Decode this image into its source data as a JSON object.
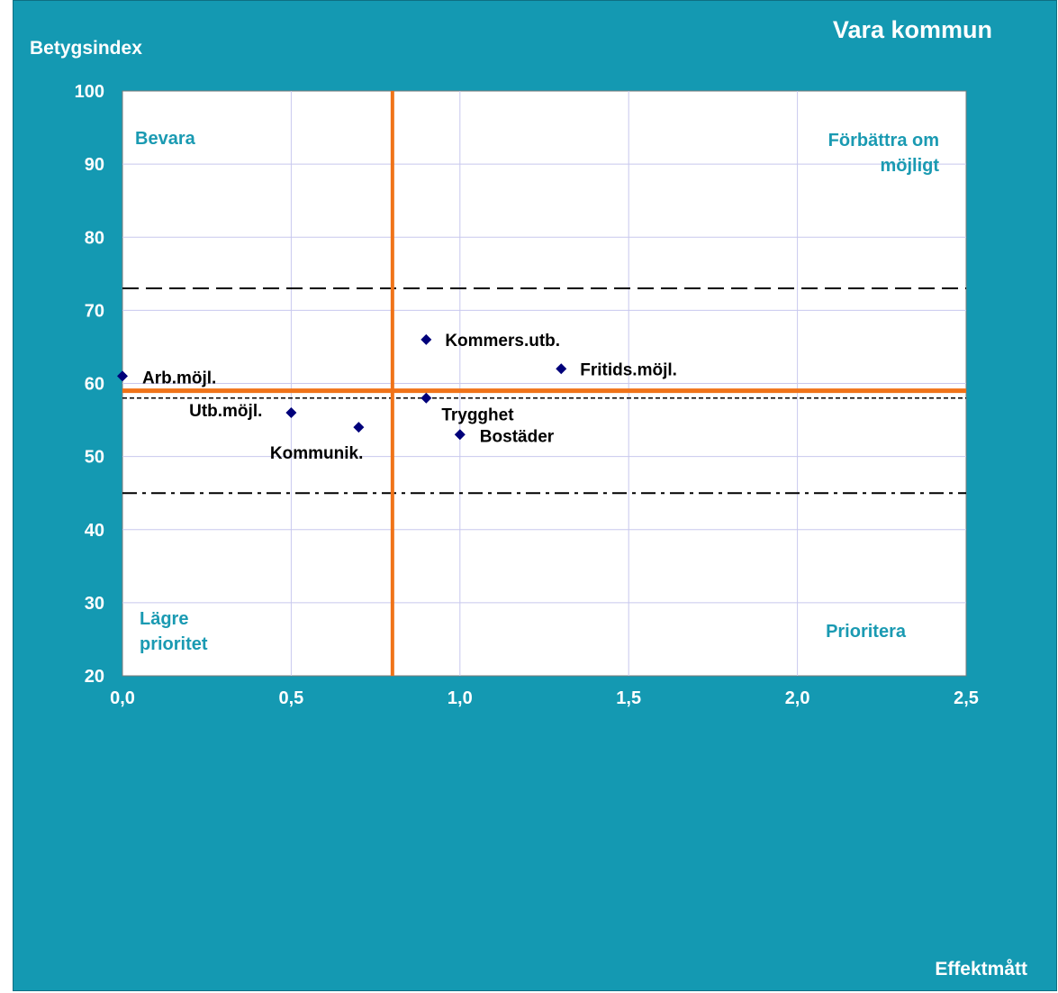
{
  "chart_data": {
    "type": "scatter",
    "title": "Vara kommun",
    "ylabel": "Betygsindex",
    "xlabel": "Effektmått",
    "xlim": [
      0,
      2.5
    ],
    "ylim": [
      20,
      100
    ],
    "x_ticks": [
      "0,0",
      "0,5",
      "1,0",
      "1,5",
      "2,0",
      "2,5"
    ],
    "x_tick_values": [
      0,
      0.5,
      1.0,
      1.5,
      2.0,
      2.5
    ],
    "y_ticks": [
      "20",
      "30",
      "40",
      "50",
      "60",
      "70",
      "80",
      "90",
      "100"
    ],
    "y_tick_values": [
      20,
      30,
      40,
      50,
      60,
      70,
      80,
      90,
      100
    ],
    "grid": true,
    "points": [
      {
        "label": "Arb.möjl.",
        "x": 0.0,
        "y": 61
      },
      {
        "label": "Utb.möjl.",
        "x": 0.5,
        "y": 56
      },
      {
        "label": "Kommunik.",
        "x": 0.7,
        "y": 54
      },
      {
        "label": "Kommers.utb.",
        "x": 0.9,
        "y": 66
      },
      {
        "label": "Trygghet",
        "x": 0.9,
        "y": 58
      },
      {
        "label": "Bostäder",
        "x": 1.0,
        "y": 53
      },
      {
        "label": "Fritids.möjl.",
        "x": 1.3,
        "y": 62
      }
    ],
    "reference_lines": {
      "vertical_orange_x": 0.8,
      "horizontal_orange_y": 59,
      "short_dashed_y": 58,
      "long_dashed_y": 73,
      "dash_dot_y": 45
    },
    "quadrant_labels": {
      "top_left": "Bevara",
      "top_right": [
        "Förbättra om",
        "möjligt"
      ],
      "bottom_left": [
        "Lägre",
        "prioritet"
      ],
      "bottom_right": "Prioritera"
    },
    "colors": {
      "background": "#1499b2",
      "plot_area": "#ffffff",
      "grid": "#c8c8ee",
      "marker": "#00007a",
      "orange_lines": "#f07318",
      "quadrant_text": "#1a9ab2",
      "reference_black": "#000000"
    }
  }
}
